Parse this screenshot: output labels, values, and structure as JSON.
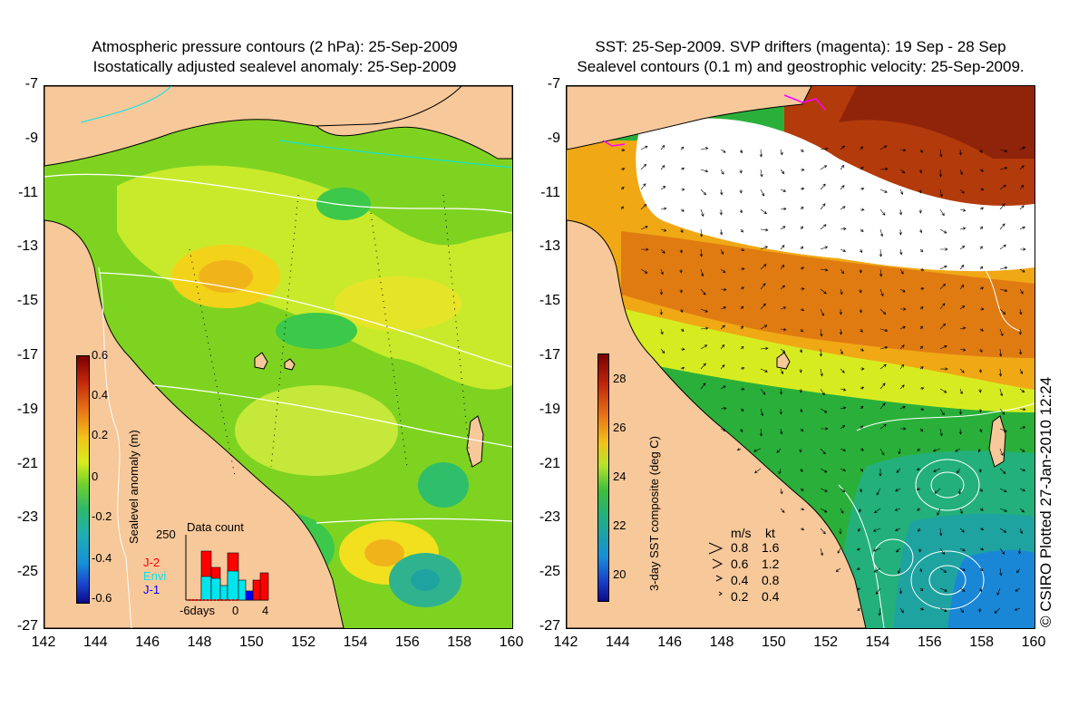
{
  "left_panel": {
    "title_line1": "Atmospheric pressure contours (2 hPa): 25-Sep-2009",
    "title_line2": "Isostatically adjusted sealevel anomaly: 25-Sep-2009",
    "colorbar_label": "Sealevel anomaly (m)",
    "colorbar_ticks": [
      "0.6",
      "0.4",
      "0.2",
      "0",
      "-0.2",
      "-0.4",
      "-0.6"
    ],
    "data_count": {
      "title": "Data count",
      "max_label": "250",
      "x_labels": [
        "-6days",
        "0",
        "4"
      ],
      "legend": [
        {
          "label": "J-2",
          "color": "#ff0000"
        },
        {
          "label": "Envi",
          "color": "#00e5ee"
        },
        {
          "label": "J-1",
          "color": "#0000ff"
        }
      ]
    }
  },
  "right_panel": {
    "title_line1": "SST: 25-Sep-2009. SVP drifters (magenta): 19 Sep - 28 Sep",
    "title_line2": "Sealevel contours (0.1 m) and geostrophic velocity: 25-Sep-2009.",
    "colorbar_label": "3-day SST composite (deg C)",
    "colorbar_ticks": [
      "28",
      "26",
      "24",
      "22",
      "20"
    ],
    "velocity_key": {
      "header_ms": "m/s",
      "header_kt": "kt",
      "rows": [
        {
          "ms": "0.8",
          "kt": "1.6"
        },
        {
          "ms": "0.6",
          "kt": "1.2"
        },
        {
          "ms": "0.4",
          "kt": "0.8"
        },
        {
          "ms": "0.2",
          "kt": "0.4"
        }
      ]
    }
  },
  "axes": {
    "y_ticks": [
      "-7",
      "-9",
      "-11",
      "-13",
      "-15",
      "-17",
      "-19",
      "-21",
      "-23",
      "-25",
      "-27"
    ],
    "x_ticks": [
      "142",
      "144",
      "146",
      "148",
      "150",
      "152",
      "154",
      "156",
      "158",
      "160"
    ]
  },
  "credit": "© CSIRO Plotted 27-Jan-2010 12:24",
  "colors": {
    "land": "#f7c89a",
    "sea_main": "#7ed321",
    "sea_yellow": "#d7ef2a",
    "sst_warm": "#e07b12",
    "sst_hot": "#b33a0a",
    "sst_green": "#2ab03a",
    "sst_cool": "#1fa3a0"
  }
}
